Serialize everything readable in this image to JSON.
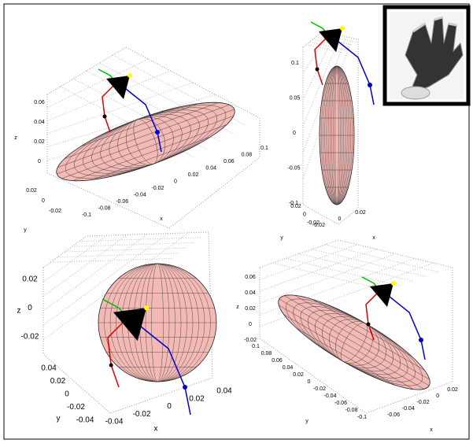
{
  "panels": [
    {
      "z_label": "z",
      "y_label": "y",
      "x_label": "x",
      "z_ticks": [
        0.06,
        0.04,
        0.02,
        0
      ],
      "y_ticks": [
        0.02,
        0,
        -0.02
      ],
      "x_ticks": [
        -0.1,
        -0.08,
        -0.06,
        -0.04,
        -0.02,
        0,
        0.02,
        0.04,
        0.06,
        0.08,
        0.1
      ]
    },
    {
      "y_label": "y",
      "x_label": "x",
      "z_ticks": [
        0.1,
        0.05,
        0,
        -0.05,
        -0.1
      ],
      "y_ticks": [
        0.02,
        0,
        -0.02
      ],
      "x_ticks": [
        -0.02,
        0,
        0.02
      ]
    },
    {
      "z_label": "z",
      "y_label": "y",
      "x_label": "x",
      "z_ticks": [
        0.02,
        0,
        -0.02
      ],
      "y_ticks": [
        0.04,
        0.02,
        0,
        -0.02,
        -0.04
      ],
      "x_ticks": [
        -0.04,
        -0.02,
        0,
        0.02,
        0.04
      ]
    },
    {
      "z_label": "z",
      "y_label": "y",
      "x_label": "x",
      "z_ticks": [
        0.06,
        0.04,
        0.02,
        0,
        -0.02
      ],
      "y_ticks": [
        0.1,
        0.08,
        0.06,
        0.04,
        0.02,
        0,
        -0.02,
        -0.04,
        -0.06,
        -0.08,
        -0.1
      ],
      "x_ticks": [
        0.02,
        0,
        -0.02,
        -0.04,
        -0.06
      ]
    }
  ]
}
